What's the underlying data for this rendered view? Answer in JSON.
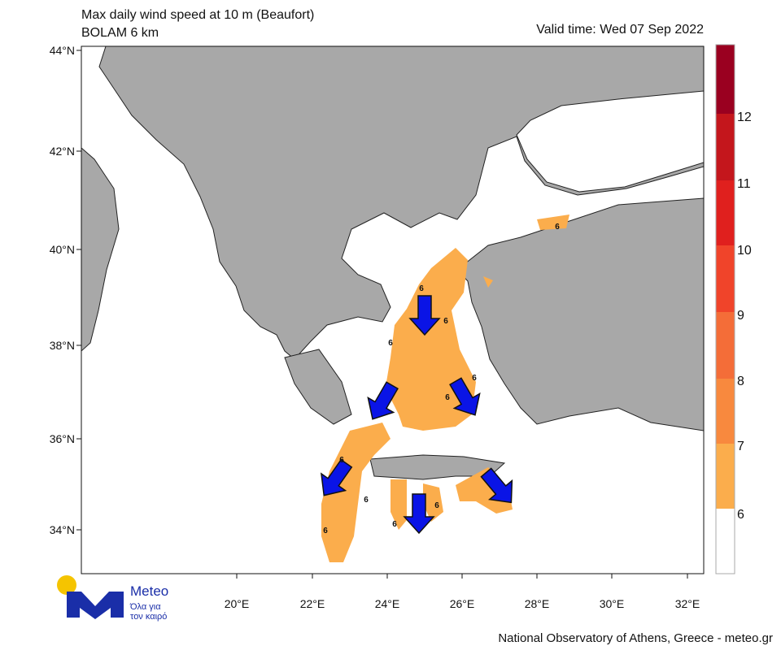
{
  "header": {
    "title": "Max daily wind speed at 10 m (Beaufort)",
    "subtitle": "BOLAM 6 km",
    "valid_time": "Valid time: Wed 07 Sep 2022"
  },
  "map": {
    "lat_labels": [
      "44°N",
      "42°N",
      "40°N",
      "38°N",
      "36°N",
      "34°N"
    ],
    "lon_labels": [
      "20°E",
      "22°E",
      "24°E",
      "26°E",
      "28°E",
      "30°E",
      "32°E"
    ],
    "contour_labels": [
      "6",
      "6",
      "6",
      "6",
      "6",
      "6",
      "6",
      "6",
      "6",
      "6",
      "6"
    ]
  },
  "colorbar": {
    "labels": [
      12,
      11,
      10,
      9,
      8,
      7,
      6
    ]
  },
  "logo": {
    "name": "Meteo",
    "tagline": [
      "Όλα για",
      "τον καιρό"
    ]
  },
  "footer": "National Observatory of Athens, Greece - meteo.gr"
}
